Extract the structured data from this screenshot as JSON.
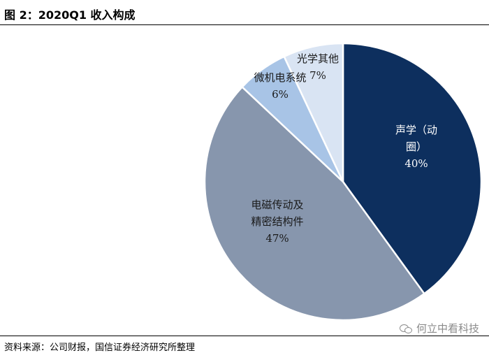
{
  "header": {
    "title": "图 2：2020Q1 收入构成"
  },
  "footer": {
    "source": "资料来源：公司财报，国信证券经济研究所整理",
    "watermark": "何立中看科技"
  },
  "chart_data": {
    "type": "pie",
    "title": "图 2：2020Q1 收入构成",
    "start_angle_deg": 0,
    "direction": "clockwise",
    "legend": "none",
    "slices": [
      {
        "label_lines": [
          "声学（动",
          "圈）"
        ],
        "value": 40,
        "value_label": "40%",
        "color": "#0d2f5e"
      },
      {
        "label_lines": [
          "电磁传动及",
          "精密结构件"
        ],
        "value": 47,
        "value_label": "47%",
        "color": "#8796ad"
      },
      {
        "label_lines": [
          "微机电系统"
        ],
        "value": 6,
        "value_label": "6%",
        "color": "#a8c4e6"
      },
      {
        "label_lines": [
          "光学其他"
        ],
        "value": 7,
        "value_label": "7%",
        "color": "#d9e4f3"
      }
    ]
  }
}
